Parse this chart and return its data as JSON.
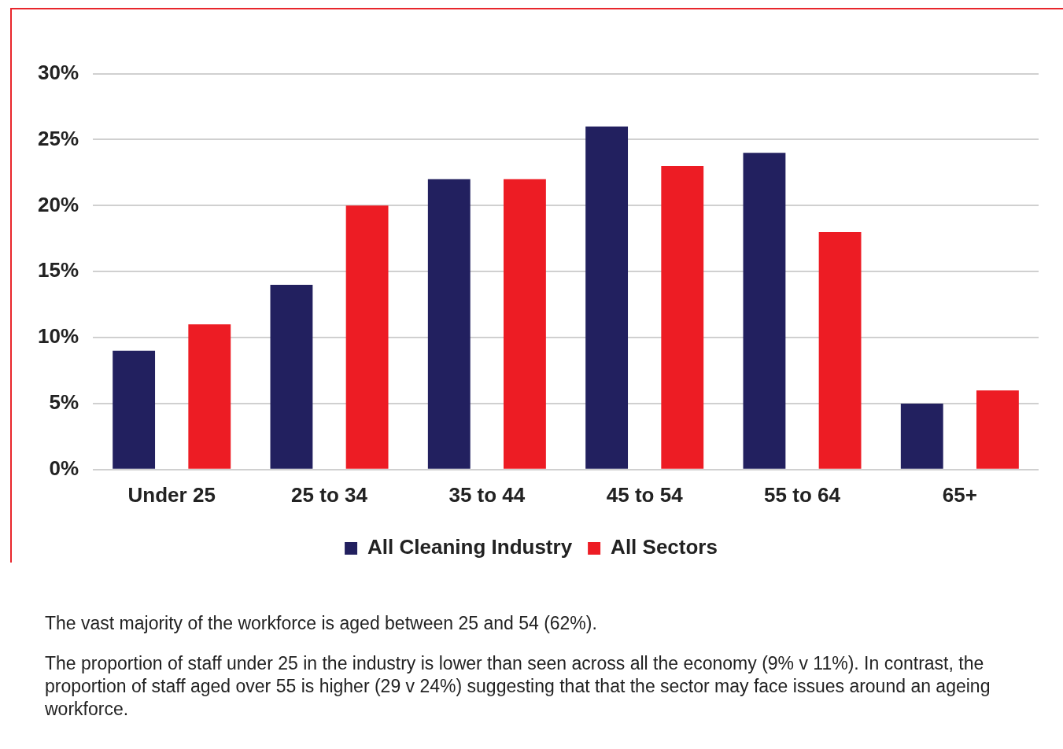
{
  "chart_data": {
    "type": "bar",
    "categories": [
      "Under 25",
      "25 to 34",
      "35 to 44",
      "45 to 54",
      "55 to 64",
      "65+"
    ],
    "series": [
      {
        "name": "All Cleaning Industry",
        "color": "#22205f",
        "values": [
          9,
          14,
          22,
          26,
          24,
          5
        ]
      },
      {
        "name": "All Sectors",
        "color": "#ed1c24",
        "values": [
          11,
          20,
          22,
          23,
          18,
          6
        ]
      }
    ],
    "ylim": [
      0,
      30
    ],
    "yticks": [
      {
        "value": 0,
        "label": "0%"
      },
      {
        "value": 5,
        "label": "5%"
      },
      {
        "value": 10,
        "label": "10%"
      },
      {
        "value": 15,
        "label": "15%"
      },
      {
        "value": 20,
        "label": "20%"
      },
      {
        "value": 25,
        "label": "25%"
      },
      {
        "value": 30,
        "label": "30%"
      }
    ],
    "grid": "y",
    "legend": "bottom",
    "annotations": [
      "The vast majority of the workforce is aged between 25 and 54 (62%).",
      "The proportion of staff under 25 in the industry is lower than seen across all the economy (9% v 11%). In contrast, the proportion of staff aged over 55 is higher (29 v 24%) suggesting that that the sector may face issues around an ageing workforce."
    ]
  }
}
